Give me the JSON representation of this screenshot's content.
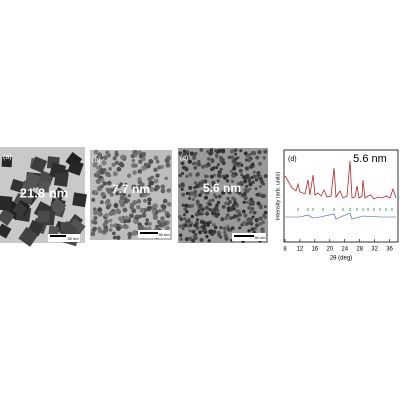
{
  "panels": [
    {
      "label": "(a)",
      "size": "21.8 nm",
      "scale_bar": "50 nm"
    },
    {
      "label": "(b)",
      "size": "7.7 nm",
      "scale_bar": "50 nm"
    },
    {
      "label": "(c)",
      "size": "5.6 nm",
      "scale_bar": "50 nm"
    },
    {
      "label": "(d)",
      "size": "5.6 nm",
      "xlabel": "2θ (deg)",
      "ylabel": "Intensity (arb. units)",
      "xlim": [
        8,
        38
      ],
      "xticks": [
        8,
        12,
        16,
        20,
        24,
        28,
        32,
        36
      ]
    }
  ]
}
